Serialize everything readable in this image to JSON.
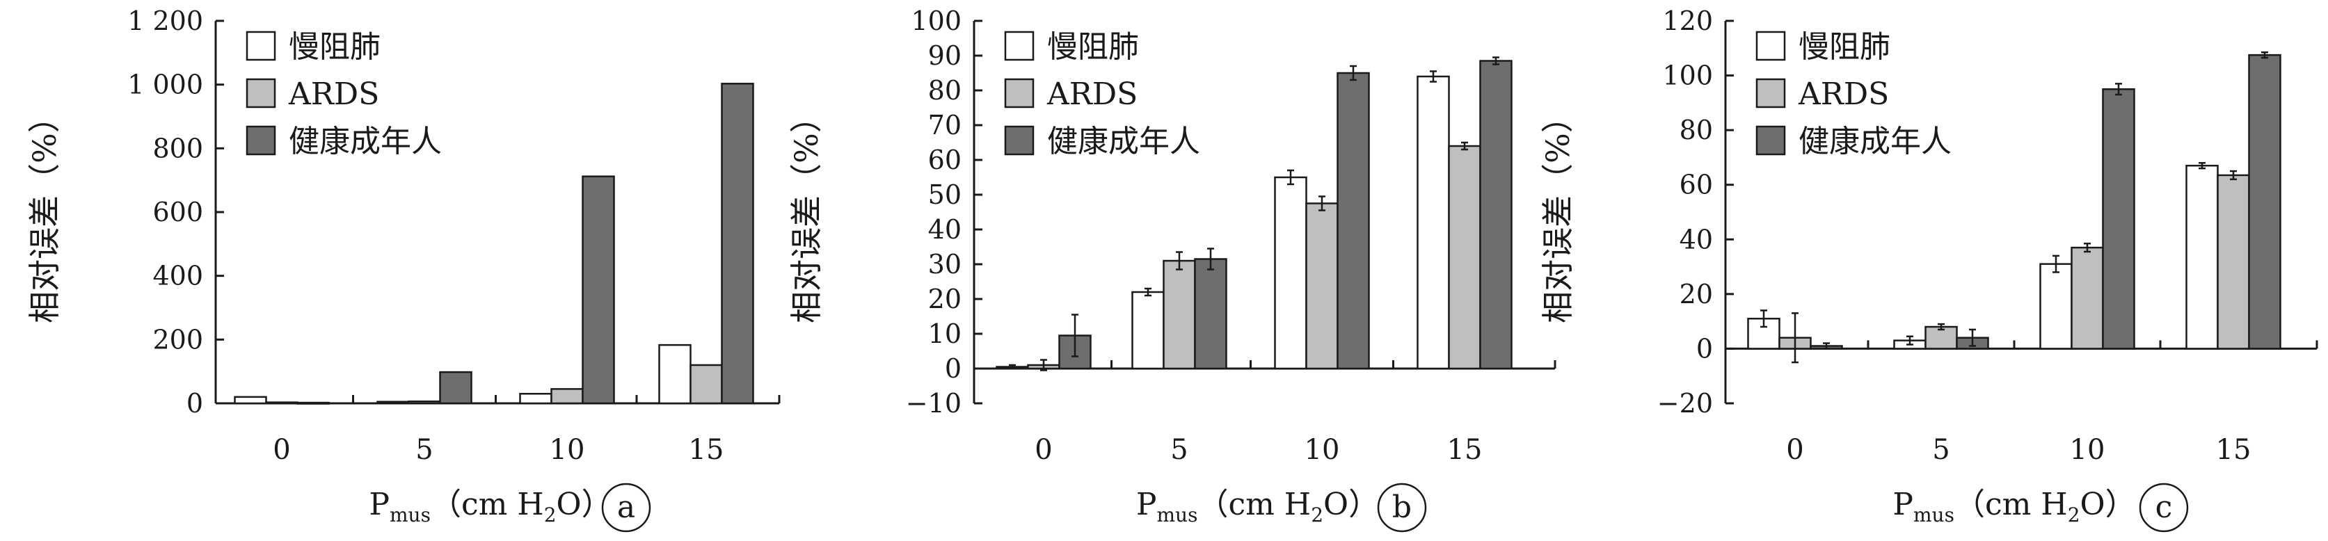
{
  "chart_data": [
    {
      "type": "bar",
      "panel": "a",
      "categories": [
        "0",
        "5",
        "10",
        "15"
      ],
      "series": [
        {
          "name": "慢阻肺",
          "color": "#ffffff",
          "values": [
            20,
            5,
            30,
            183
          ]
        },
        {
          "name": "ARDS",
          "color": "#bfbfbf",
          "values": [
            3,
            6,
            45,
            120
          ]
        },
        {
          "name": "健康成年人",
          "color": "#6e6e6e",
          "values": [
            2,
            98,
            712,
            1003
          ]
        }
      ],
      "errors": null,
      "yticks": [
        0,
        200,
        400,
        600,
        800,
        1000,
        1200
      ],
      "ytick_labels": [
        "0",
        "200",
        "400",
        "600",
        "800",
        "1 000",
        "1 200"
      ],
      "ylim": [
        0,
        1200
      ],
      "ylabel": "相对误差（%）",
      "xlabel": {
        "main": "P",
        "sub": "mus",
        "unit_open": "（cm H",
        "unit_sub": "2",
        "unit_close": "O）"
      },
      "legend": "top-left",
      "grid": false
    },
    {
      "type": "bar",
      "panel": "b",
      "categories": [
        "0",
        "5",
        "10",
        "15"
      ],
      "series": [
        {
          "name": "慢阻肺",
          "color": "#ffffff",
          "values": [
            0.5,
            22,
            55,
            84
          ]
        },
        {
          "name": "ARDS",
          "color": "#bfbfbf",
          "values": [
            1,
            31,
            47.5,
            64
          ]
        },
        {
          "name": "健康成年人",
          "color": "#6e6e6e",
          "values": [
            9.5,
            31.5,
            85,
            88.5
          ]
        }
      ],
      "errors": [
        [
          0.5,
          1,
          2,
          1.5
        ],
        [
          1.5,
          2.5,
          2,
          1
        ],
        [
          6,
          3,
          2,
          1
        ]
      ],
      "yticks": [
        -10,
        0,
        10,
        20,
        30,
        40,
        50,
        60,
        70,
        80,
        90,
        100
      ],
      "ytick_labels": [
        "−10",
        "0",
        "10",
        "20",
        "30",
        "40",
        "50",
        "60",
        "70",
        "80",
        "90",
        "100"
      ],
      "ylim": [
        -10,
        100
      ],
      "ylabel": "相对误差（%）",
      "xlabel": {
        "main": "P",
        "sub": "mus",
        "unit_open": "（cm H",
        "unit_sub": "2",
        "unit_close": "O）"
      },
      "legend": "top-left",
      "grid": false
    },
    {
      "type": "bar",
      "panel": "c",
      "categories": [
        "0",
        "5",
        "10",
        "15"
      ],
      "series": [
        {
          "name": "慢阻肺",
          "color": "#ffffff",
          "values": [
            11,
            3,
            31,
            67
          ]
        },
        {
          "name": "ARDS",
          "color": "#bfbfbf",
          "values": [
            4,
            8,
            37,
            63.5
          ]
        },
        {
          "name": "健康成年人",
          "color": "#6e6e6e",
          "values": [
            1,
            4,
            95,
            107.5
          ]
        }
      ],
      "errors": [
        [
          3,
          1.5,
          3,
          1
        ],
        [
          9,
          1,
          1.5,
          1.5
        ],
        [
          1,
          3,
          2,
          1
        ]
      ],
      "yticks": [
        -20,
        0,
        20,
        40,
        60,
        80,
        100,
        120
      ],
      "ytick_labels": [
        "−20",
        "0",
        "20",
        "40",
        "60",
        "80",
        "100",
        "120"
      ],
      "ylim": [
        -20,
        120
      ],
      "ylabel": "相对误差（%）",
      "xlabel": {
        "main": "P",
        "sub": "mus",
        "unit_open": "（cm H",
        "unit_sub": "2",
        "unit_close": "O）"
      },
      "legend": "top-left",
      "grid": false
    }
  ]
}
